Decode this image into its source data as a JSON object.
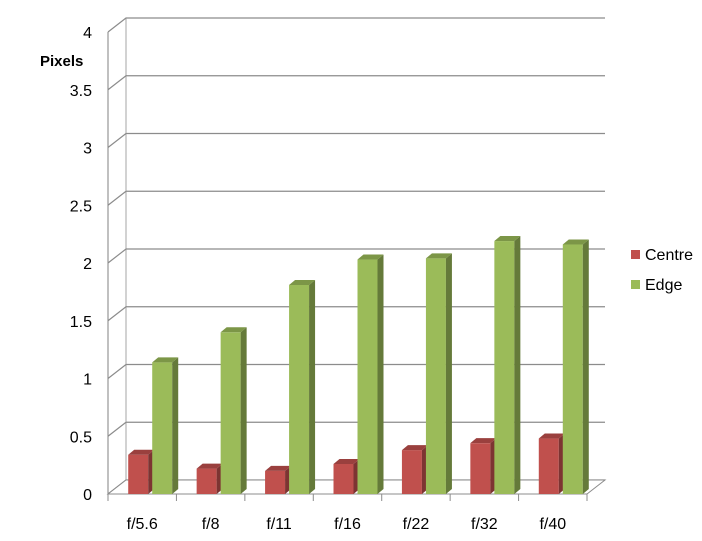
{
  "chart_data": {
    "type": "bar",
    "three_d": true,
    "title": "",
    "ylabel": "Pixels",
    "xlabel": "",
    "categories": [
      "f/5.6",
      "f/8",
      "f/11",
      "f/16",
      "f/22",
      "f/32",
      "f/40"
    ],
    "series": [
      {
        "name": "Centre",
        "color": "#c0504d",
        "values": [
          0.34,
          0.22,
          0.2,
          0.26,
          0.38,
          0.44,
          0.48
        ]
      },
      {
        "name": "Edge",
        "color": "#9bbb59",
        "values": [
          1.14,
          1.4,
          1.81,
          2.03,
          2.04,
          2.19,
          2.16
        ]
      }
    ],
    "ylim": [
      0,
      4
    ],
    "yticks": [
      "0",
      "0.5",
      "1",
      "1.5",
      "2",
      "2.5",
      "3",
      "3.5",
      "4"
    ],
    "grid": true,
    "legend": "right"
  }
}
